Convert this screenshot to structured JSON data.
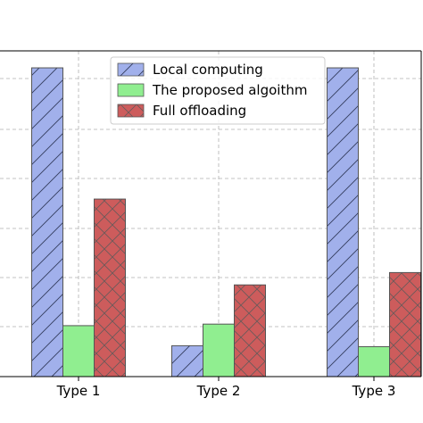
{
  "chart_data": {
    "type": "bar",
    "categories": [
      "Type 1",
      "Type 2",
      "Type 3"
    ],
    "series": [
      {
        "name": "Local computing",
        "values": [
          1.0,
          0.1,
          1.0
        ],
        "color": "#a1b0eb",
        "hatch": "diagonal"
      },
      {
        "name": "The proposed algoithm",
        "values": [
          0.165,
          0.17,
          0.097
        ],
        "color": "#90ee90",
        "hatch": "none"
      },
      {
        "name": "Full offloading",
        "values": [
          0.575,
          0.297,
          0.337
        ],
        "color": "#cd5c5c",
        "hatch": "cross"
      }
    ],
    "ylim": [
      0,
      1.055
    ],
    "grid": true,
    "legend_position": "top-center",
    "title": "",
    "xlabel": "",
    "ylabel": ""
  }
}
